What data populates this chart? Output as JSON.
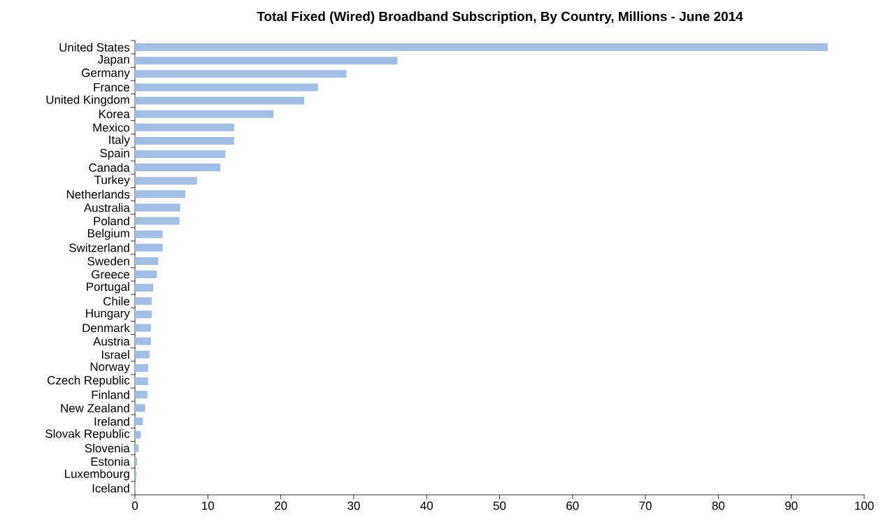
{
  "chart_data": {
    "type": "bar",
    "orientation": "horizontal",
    "title": "Total Fixed (Wired) Broadband Subscription, By Country, Millions - June 2014",
    "categories": [
      "United States",
      "Japan",
      "Germany",
      "France",
      "United Kingdom",
      "Korea",
      "Mexico",
      "Italy",
      "Spain",
      "Canada",
      "Turkey",
      "Netherlands",
      "Australia",
      "Poland",
      "Belgium",
      "Switzerland",
      "Sweden",
      "Greece",
      "Portugal",
      "Chile",
      "Hungary",
      "Denmark",
      "Austria",
      "Israel",
      "Norway",
      "Czech Republic",
      "Finland",
      "New Zealand",
      "Ireland",
      "Slovak Republic",
      "Slovenia",
      "Estonia",
      "Luxembourg",
      "Iceland"
    ],
    "values": [
      95,
      36,
      29,
      25.1,
      23.2,
      19,
      13.6,
      13.6,
      12.4,
      11.7,
      8.5,
      6.9,
      6.2,
      6.1,
      3.8,
      3.8,
      3.2,
      3.0,
      2.5,
      2.3,
      2.3,
      2.2,
      2.2,
      2.0,
      1.8,
      1.8,
      1.7,
      1.4,
      1.1,
      0.8,
      0.5,
      0.3,
      0.2,
      0.1
    ],
    "color": "#a3bde3",
    "xlim": [
      0,
      100
    ],
    "xticks": [
      0,
      10,
      20,
      30,
      40,
      50,
      60,
      70,
      80,
      90,
      100
    ],
    "grid": false
  }
}
